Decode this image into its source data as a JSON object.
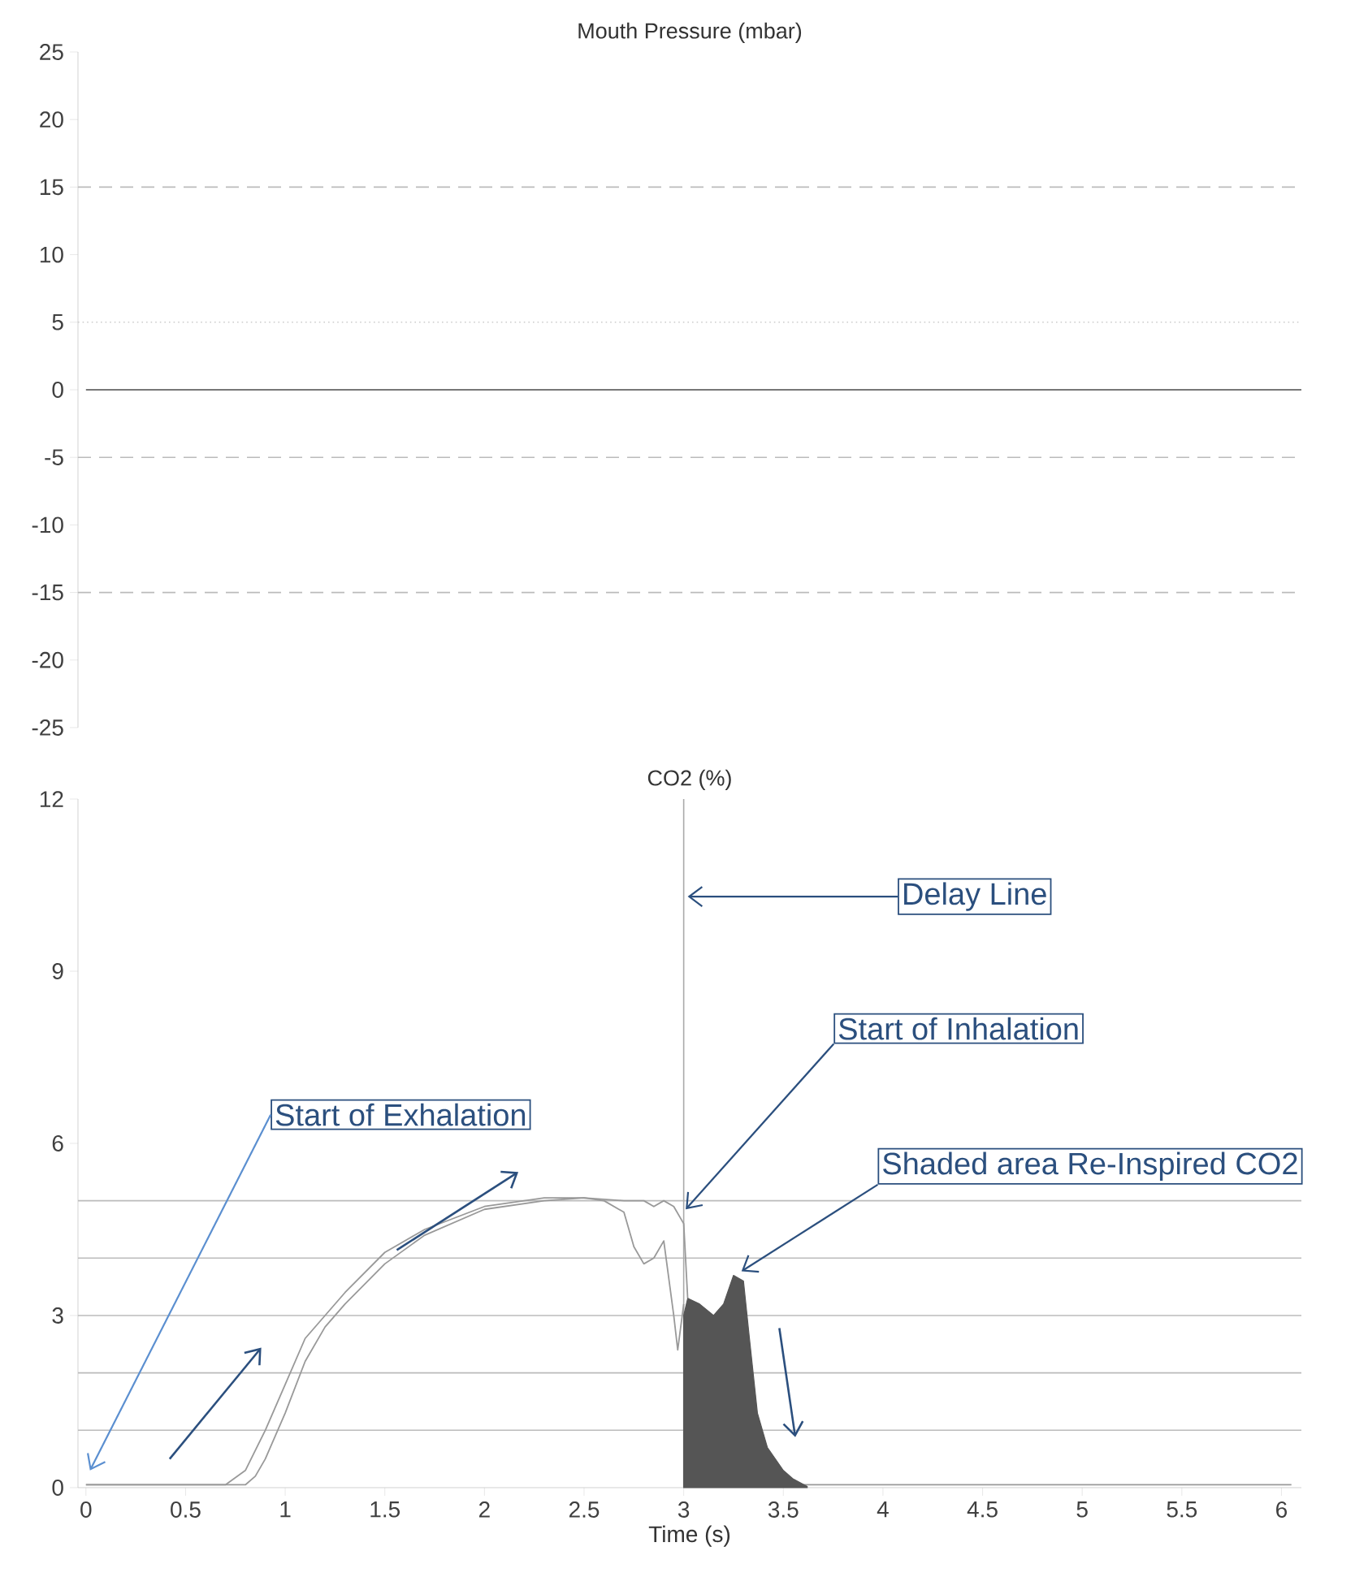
{
  "chart_data": [
    {
      "type": "line",
      "title": "Mouth Pressure (mbar)",
      "xlim": [
        -0.04,
        6.1
      ],
      "ylim": [
        -25,
        25
      ],
      "yticks": [
        -25,
        -20,
        -15,
        -10,
        -5,
        0,
        5,
        10,
        15,
        20,
        25
      ],
      "tick_labels": "y",
      "series": [
        {
          "color": "#777777",
          "x": [
            0,
            6.1
          ],
          "values": [
            0,
            0
          ]
        }
      ],
      "ref_lines": [
        {
          "axis": "y",
          "value": 15,
          "color": "#bbbbbb",
          "line_style": "dashed"
        },
        {
          "axis": "y",
          "value": 5,
          "color": "#cccccc",
          "line_style": "dotted"
        },
        {
          "axis": "y",
          "value": -5,
          "color": "#bbbbbb",
          "line_style": "dashed"
        },
        {
          "axis": "y",
          "value": -15,
          "color": "#bbbbbb",
          "line_style": "dashed"
        }
      ]
    },
    {
      "type": "line",
      "title": "CO2 (%)",
      "xlabel": "Time (s)",
      "xlim": [
        -0.04,
        6.1
      ],
      "ylim": [
        0,
        12
      ],
      "xticks": [
        0,
        0.5,
        1,
        1.5,
        2,
        2.5,
        3,
        3.5,
        4,
        4.5,
        5,
        5.5,
        6
      ],
      "yticks": [
        0,
        3,
        6,
        9,
        12
      ],
      "series": [
        {
          "color": "#999999",
          "x": [
            0,
            0.5,
            0.7,
            0.8,
            0.9,
            1.0,
            1.1,
            1.2,
            1.3,
            1.5,
            1.7,
            2.0,
            2.3,
            2.5,
            2.6,
            2.7,
            2.75,
            2.8,
            2.85,
            2.9,
            2.95,
            2.97,
            3.0
          ],
          "values": [
            0.05,
            0.05,
            0.05,
            0.3,
            1.0,
            1.8,
            2.6,
            3.0,
            3.4,
            4.1,
            4.5,
            4.9,
            5.05,
            5.05,
            5.0,
            4.8,
            4.2,
            3.9,
            4.0,
            4.3,
            3.0,
            2.4,
            3.2
          ]
        },
        {
          "color": "#999999",
          "x": [
            0,
            0.5,
            0.8,
            0.85,
            0.9,
            1.0,
            1.1,
            1.2,
            1.3,
            1.5,
            1.7,
            2.0,
            2.3,
            2.5,
            2.7,
            2.8,
            2.85,
            2.9,
            2.95,
            3.0,
            3.02,
            3.3,
            3.6,
            6.05
          ],
          "values": [
            0.05,
            0.05,
            0.05,
            0.2,
            0.5,
            1.3,
            2.2,
            2.8,
            3.2,
            3.9,
            4.4,
            4.85,
            5.0,
            5.05,
            5.0,
            5.0,
            4.9,
            5.0,
            4.9,
            4.6,
            3.3,
            null,
            0.05,
            0.05
          ]
        },
        {
          "type": "area",
          "color": "#555555",
          "x": [
            3.0,
            3.0,
            3.02,
            3.08,
            3.15,
            3.2,
            3.25,
            3.3,
            3.33,
            3.37,
            3.42,
            3.5,
            3.55,
            3.62
          ],
          "values": [
            0,
            3.0,
            3.3,
            3.2,
            3.0,
            3.2,
            3.7,
            3.6,
            2.6,
            1.3,
            0.7,
            0.3,
            0.15,
            0.02
          ]
        }
      ],
      "ref_lines": [
        {
          "axis": "y",
          "value": 1,
          "color": "#bbbbbb"
        },
        {
          "axis": "y",
          "value": 2,
          "color": "#bbbbbb"
        },
        {
          "axis": "y",
          "value": 3,
          "color": "#bbbbbb"
        },
        {
          "axis": "y",
          "value": 4,
          "color": "#bbbbbb"
        },
        {
          "axis": "y",
          "value": 5,
          "color": "#bbbbbb"
        },
        {
          "axis": "x",
          "value": 3,
          "color": "#aaaaaa"
        }
      ],
      "annotations": [
        "Start of Exhalation",
        {
          "text": "Delay Line",
          "x": 3.02,
          "y": 10.3
        },
        {
          "text": "Start of Inhalation",
          "x": 3.01,
          "y": 4.85
        },
        {
          "text": "Shaded area Re-Inspired CO2",
          "x": 3.29,
          "y": 3.77
        }
      ]
    }
  ]
}
